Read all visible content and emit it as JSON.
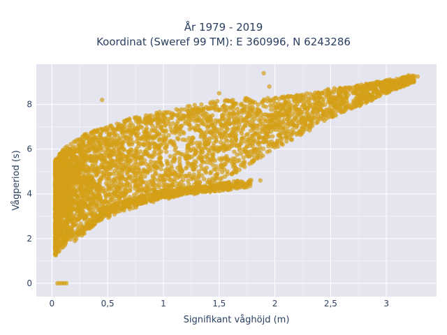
{
  "chart_data": {
    "type": "scatter",
    "title_line1": "År 1979 - 2019",
    "title_line2": "Koordinat (Sweref 99 TM): E 360996, N 6243286",
    "xlabel": "Signifikant våghöjd (m)",
    "ylabel": "Vågperiod (s)",
    "xlim": [
      -0.14,
      3.45
    ],
    "ylim": [
      -0.6,
      9.8
    ],
    "x_ticks": [
      0,
      0.5,
      1,
      1.5,
      2,
      2.5,
      3
    ],
    "x_tick_labels": [
      "0",
      "0,5",
      "1",
      "1,5",
      "2",
      "2,5",
      "3"
    ],
    "y_ticks": [
      0,
      2,
      4,
      6,
      8
    ],
    "y_tick_labels": [
      "0",
      "2",
      "4",
      "6",
      "8"
    ],
    "grid": true,
    "legend": "none",
    "colors": {
      "marker": "#D4A017",
      "plot_bg": "#E5E5F0",
      "grid": "#FFFFFF",
      "text": "#2A3F5F"
    },
    "series": [
      {
        "marker_opacity": 0.7,
        "lower_envelope": [
          [
            0.03,
            1.2
          ],
          [
            0.1,
            1.6
          ],
          [
            0.2,
            2.1
          ],
          [
            0.3,
            2.5
          ],
          [
            0.5,
            2.9
          ],
          [
            0.7,
            3.3
          ],
          [
            1.0,
            3.7
          ],
          [
            1.3,
            4.2
          ],
          [
            1.5,
            4.6
          ],
          [
            1.8,
            5.3
          ],
          [
            2.0,
            6.0
          ],
          [
            2.3,
            6.8
          ],
          [
            2.5,
            7.4
          ],
          [
            2.8,
            8.0
          ],
          [
            3.0,
            8.5
          ],
          [
            3.25,
            9.0
          ]
        ],
        "upper_envelope": [
          [
            0.03,
            5.5
          ],
          [
            0.1,
            6.0
          ],
          [
            0.2,
            6.4
          ],
          [
            0.3,
            6.7
          ],
          [
            0.5,
            7.0
          ],
          [
            0.7,
            7.4
          ],
          [
            1.0,
            7.7
          ],
          [
            1.3,
            8.0
          ],
          [
            1.5,
            8.2
          ],
          [
            1.8,
            8.3
          ],
          [
            2.0,
            8.3
          ],
          [
            2.3,
            8.5
          ],
          [
            2.5,
            8.7
          ],
          [
            2.8,
            8.9
          ],
          [
            3.0,
            9.1
          ],
          [
            3.25,
            9.3
          ]
        ],
        "secondary_branch": [
          [
            0.2,
            2.0
          ],
          [
            0.5,
            3.3
          ],
          [
            1.0,
            4.0
          ],
          [
            1.5,
            4.3
          ],
          [
            1.8,
            4.5
          ]
        ],
        "zero_period_points": [
          [
            0.05,
            0
          ],
          [
            0.07,
            0
          ],
          [
            0.09,
            0
          ],
          [
            0.11,
            0
          ],
          [
            0.13,
            0
          ]
        ],
        "outliers": [
          [
            1.9,
            9.4
          ],
          [
            0.45,
            8.2
          ],
          [
            3.2,
            9.3
          ],
          [
            3.28,
            9.25
          ],
          [
            3.1,
            8.9
          ],
          [
            1.87,
            4.6
          ],
          [
            1.85,
            5.7
          ],
          [
            3.08,
            8.7
          ],
          [
            1.5,
            8.5
          ],
          [
            1.95,
            8.8
          ]
        ]
      }
    ]
  }
}
